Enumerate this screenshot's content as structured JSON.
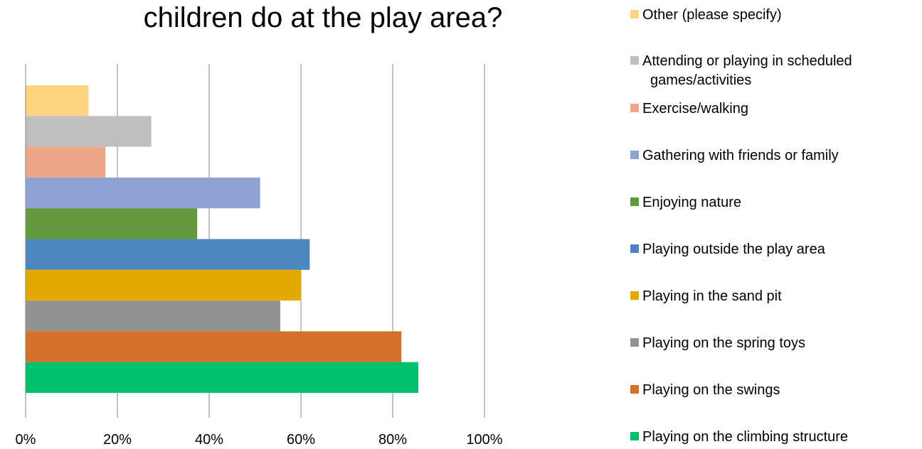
{
  "chart_data": {
    "type": "bar",
    "orientation": "horizontal",
    "title": "children do at the play area?",
    "xlabel": "",
    "ylabel": "",
    "xlim": [
      0,
      100
    ],
    "x_ticks": [
      "0%",
      "20%",
      "40%",
      "60%",
      "80%",
      "100%"
    ],
    "grid": true,
    "legend_position": "right",
    "categories": [
      "Other (please specify)",
      "Attending or playing in scheduled games/activities",
      "Exercise/walking",
      "Gathering with friends or family",
      "Enjoying nature",
      "Playing outside the play area",
      "Playing in the sand pit",
      "Playing on the spring toys",
      "Playing on the swings",
      "Playing on the climbing structure"
    ],
    "values": [
      13.7,
      27.4,
      17.4,
      51.1,
      37.4,
      61.9,
      60.1,
      55.5,
      81.9,
      85.6
    ],
    "colors": [
      "#FFD37F",
      "#BEBEBE",
      "#F0A789",
      "#8FA2D4",
      "#62993E",
      "#4E86BF",
      "#E2AA00",
      "#939393",
      "#D4702A",
      "#00C06D"
    ],
    "legend": [
      [
        "Other (please specify)"
      ],
      [
        "Attending or playing in scheduled",
        "games/activities"
      ],
      [
        "Exercise/walking"
      ],
      [
        "Gathering with friends or family"
      ],
      [
        "Enjoying nature"
      ],
      [
        "Playing outside the play area"
      ],
      [
        "Playing in the sand pit"
      ],
      [
        "Playing on the spring toys"
      ],
      [
        "Playing on the swings"
      ],
      [
        "Playing on the climbing structure"
      ]
    ]
  }
}
